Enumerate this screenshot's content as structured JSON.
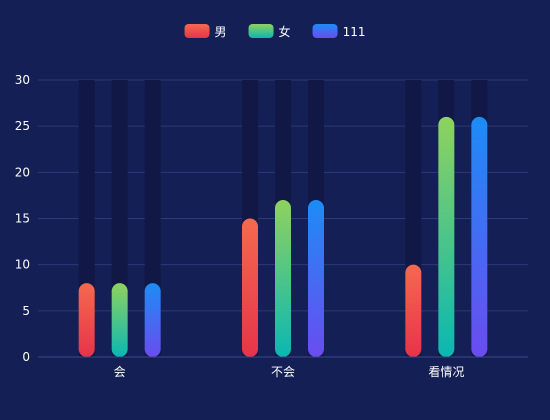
{
  "chart_data": {
    "type": "bar",
    "categories": [
      "会",
      "不会",
      "看情况"
    ],
    "series": [
      {
        "name": "男",
        "values": [
          8,
          15,
          10
        ]
      },
      {
        "name": "女",
        "values": [
          8,
          17,
          26
        ]
      },
      {
        "name": "111",
        "values": [
          8,
          17,
          26
        ]
      }
    ],
    "ylim": [
      0,
      30
    ],
    "yticks": [
      0,
      5,
      10,
      15,
      20,
      25,
      30
    ],
    "grid": true,
    "legend_position": "top-center",
    "background_bar_max": 30
  },
  "colors": {
    "background": "#141f55",
    "grid": "#2b3a78",
    "axis": "#3a4a8a",
    "text": "#ffffff",
    "shadow": "#111845",
    "series": [
      {
        "top": "#f5694f",
        "bottom": "#e6344a"
      },
      {
        "top": "#8fd25f",
        "bottom": "#0bb7b2"
      },
      {
        "top": "#1d8cf5",
        "bottom": "#6a4cf0"
      }
    ]
  }
}
